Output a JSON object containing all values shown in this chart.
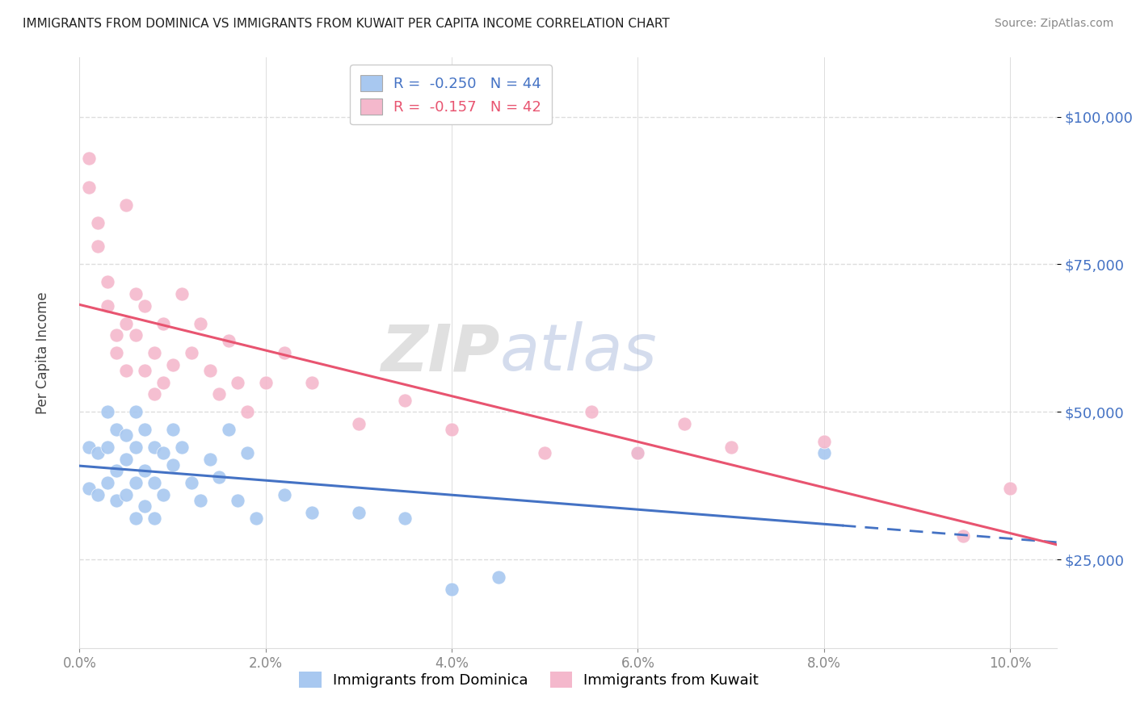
{
  "title": "IMMIGRANTS FROM DOMINICA VS IMMIGRANTS FROM KUWAIT PER CAPITA INCOME CORRELATION CHART",
  "source": "Source: ZipAtlas.com",
  "ylabel": "Per Capita Income",
  "xlabel_ticks": [
    "0.0%",
    "2.0%",
    "4.0%",
    "6.0%",
    "8.0%",
    "10.0%"
  ],
  "xlabel_vals": [
    0.0,
    0.02,
    0.04,
    0.06,
    0.08,
    0.1
  ],
  "ytick_labels": [
    "$25,000",
    "$50,000",
    "$75,000",
    "$100,000"
  ],
  "ytick_vals": [
    25000,
    50000,
    75000,
    100000
  ],
  "dominica_color": "#A8C8F0",
  "kuwait_color": "#F4B8CC",
  "dominica_line_color": "#4472C4",
  "kuwait_line_color": "#E85470",
  "dominica_label": "Immigrants from Dominica",
  "kuwait_label": "Immigrants from Kuwait",
  "R_dominica": -0.25,
  "N_dominica": 44,
  "R_kuwait": -0.157,
  "N_kuwait": 42,
  "xlim": [
    0.0,
    0.105
  ],
  "ylim": [
    10000,
    110000
  ],
  "dominica_x": [
    0.001,
    0.001,
    0.002,
    0.002,
    0.003,
    0.003,
    0.003,
    0.004,
    0.004,
    0.004,
    0.005,
    0.005,
    0.005,
    0.006,
    0.006,
    0.006,
    0.006,
    0.007,
    0.007,
    0.007,
    0.008,
    0.008,
    0.008,
    0.009,
    0.009,
    0.01,
    0.01,
    0.011,
    0.012,
    0.013,
    0.014,
    0.015,
    0.016,
    0.017,
    0.018,
    0.019,
    0.022,
    0.025,
    0.03,
    0.035,
    0.04,
    0.045,
    0.06,
    0.08
  ],
  "dominica_y": [
    44000,
    37000,
    43000,
    36000,
    50000,
    44000,
    38000,
    47000,
    40000,
    35000,
    46000,
    42000,
    36000,
    50000,
    44000,
    38000,
    32000,
    47000,
    40000,
    34000,
    44000,
    38000,
    32000,
    43000,
    36000,
    47000,
    41000,
    44000,
    38000,
    35000,
    42000,
    39000,
    47000,
    35000,
    43000,
    32000,
    36000,
    33000,
    33000,
    32000,
    20000,
    22000,
    43000,
    43000
  ],
  "kuwait_x": [
    0.001,
    0.001,
    0.002,
    0.002,
    0.003,
    0.003,
    0.004,
    0.004,
    0.005,
    0.005,
    0.005,
    0.006,
    0.006,
    0.007,
    0.007,
    0.008,
    0.008,
    0.009,
    0.009,
    0.01,
    0.011,
    0.012,
    0.013,
    0.014,
    0.015,
    0.016,
    0.017,
    0.018,
    0.02,
    0.022,
    0.025,
    0.03,
    0.035,
    0.04,
    0.05,
    0.055,
    0.06,
    0.065,
    0.07,
    0.08,
    0.095,
    0.1
  ],
  "kuwait_y": [
    93000,
    88000,
    82000,
    78000,
    72000,
    68000,
    63000,
    60000,
    85000,
    57000,
    65000,
    70000,
    63000,
    68000,
    57000,
    60000,
    53000,
    65000,
    55000,
    58000,
    70000,
    60000,
    65000,
    57000,
    53000,
    62000,
    55000,
    50000,
    55000,
    60000,
    55000,
    48000,
    52000,
    47000,
    43000,
    50000,
    43000,
    48000,
    44000,
    45000,
    29000,
    37000
  ],
  "dom_line_x_solid_end": 0.082,
  "dom_line_x_dashed_start": 0.082,
  "dom_line_x_end": 0.105
}
